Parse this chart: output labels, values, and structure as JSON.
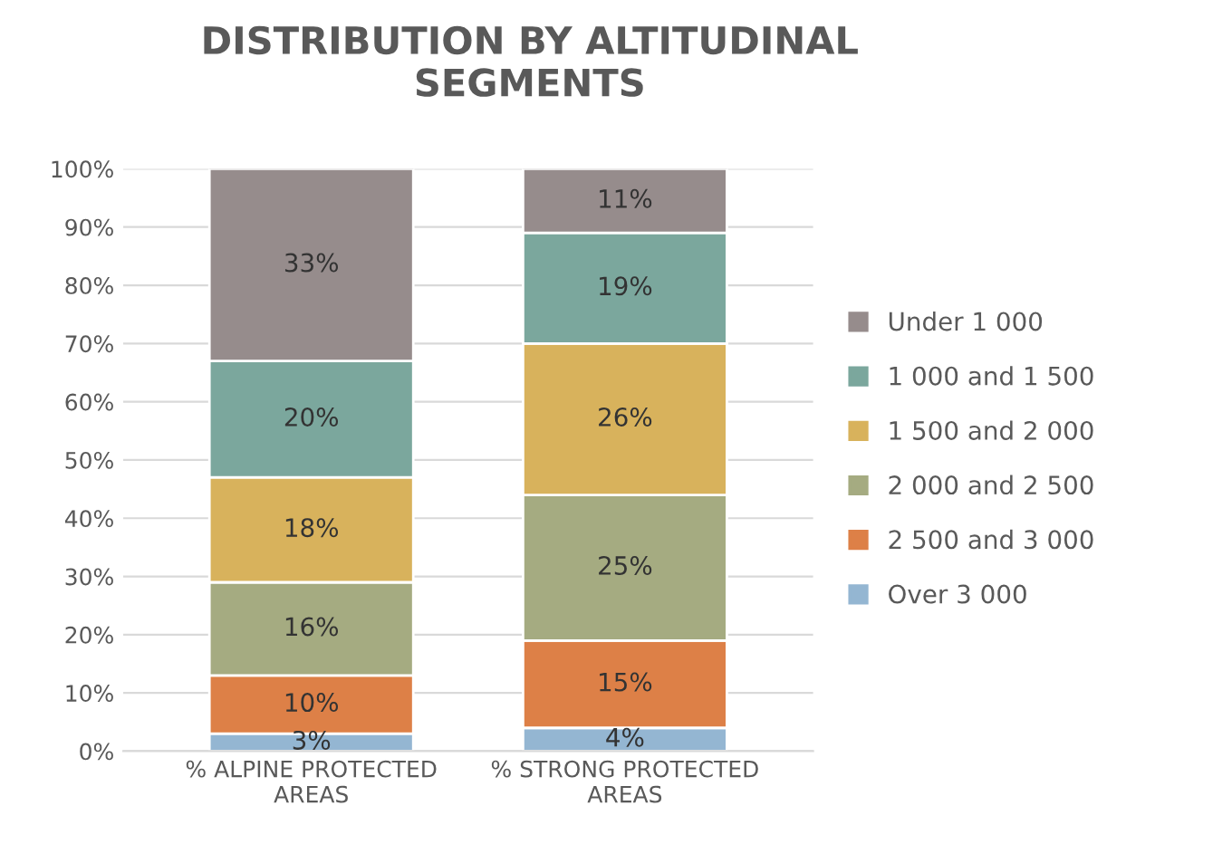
{
  "chart_data": {
    "type": "bar",
    "title": "DISTRIBUTION BY ALTITUDINAL\nSEGMENTS",
    "stacked": true,
    "categories": [
      "% ALPINE PROTECTED\nAREAS",
      "% STRONG PROTECTED\nAREAS"
    ],
    "series": [
      {
        "name": "Over 3 000",
        "color": "#94b6d2",
        "values": [
          3,
          4
        ],
        "value_labels": [
          "3%",
          "4%"
        ]
      },
      {
        "name": "2 500 and 3 000",
        "color": "#dd8047",
        "values": [
          10,
          15
        ],
        "value_labels": [
          "10%",
          "15%"
        ]
      },
      {
        "name": "2 000 and 2 500",
        "color": "#a5ab81",
        "values": [
          16,
          25
        ],
        "value_labels": [
          "16%",
          "25%"
        ]
      },
      {
        "name": "1 500 and 2 000",
        "color": "#d8b25c",
        "values": [
          18,
          26
        ],
        "value_labels": [
          "18%",
          "26%"
        ]
      },
      {
        "name": "1 000 and 1 500",
        "color": "#7ba79d",
        "values": [
          20,
          19
        ],
        "value_labels": [
          "20%",
          "19%"
        ]
      },
      {
        "name": "Under 1 000",
        "color": "#968c8c",
        "values": [
          33,
          11
        ],
        "value_labels": [
          "33%",
          "11%"
        ]
      }
    ],
    "ylim": [
      0,
      100
    ],
    "yticks": [
      {
        "value": 0,
        "label": "0%"
      },
      {
        "value": 10,
        "label": "10%"
      },
      {
        "value": 20,
        "label": "20%"
      },
      {
        "value": 30,
        "label": "30%"
      },
      {
        "value": 40,
        "label": "40%"
      },
      {
        "value": 50,
        "label": "50%"
      },
      {
        "value": 60,
        "label": "60%"
      },
      {
        "value": 70,
        "label": "70%"
      },
      {
        "value": 80,
        "label": "80%"
      },
      {
        "value": 90,
        "label": "90%"
      },
      {
        "value": 100,
        "label": "100%"
      }
    ],
    "grid": "y",
    "legend": "right"
  }
}
